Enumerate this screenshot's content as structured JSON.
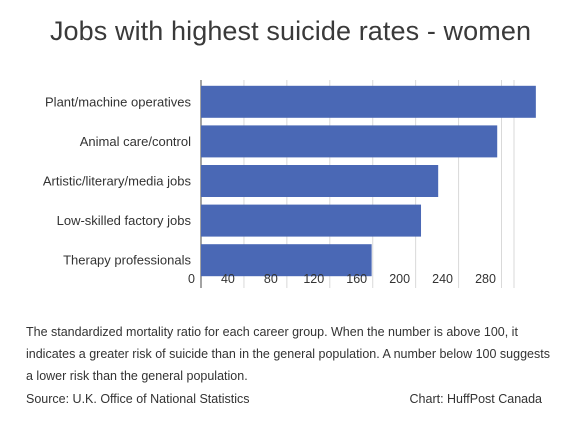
{
  "title": "Jobs with highest suicide rates - women",
  "chart_data": {
    "type": "bar",
    "orientation": "horizontal",
    "categories": [
      "Plant/machine operatives",
      "Animal care/control",
      "Artistic/literary/media jobs",
      "Low-skilled factory jobs",
      "Therapy professionals"
    ],
    "values": [
      312,
      276,
      221,
      205,
      159
    ],
    "xlim": [
      0,
      314
    ],
    "xticks": [
      "0",
      "40",
      "80",
      "120",
      "160",
      "200",
      "240",
      "280"
    ],
    "tick_values": [
      0,
      40,
      80,
      120,
      160,
      200,
      240,
      280
    ],
    "bar_color": "#4a68b5",
    "grid": true
  },
  "caption": "The standardized mortality ratio for each career group. When the number is above 100, it indicates a greater risk of suicide than in the general population. A number below 100 suggests a lower risk than the general population.",
  "source": "Source: U.K. Office of National Statistics",
  "credit": "Chart: HuffPost Canada"
}
